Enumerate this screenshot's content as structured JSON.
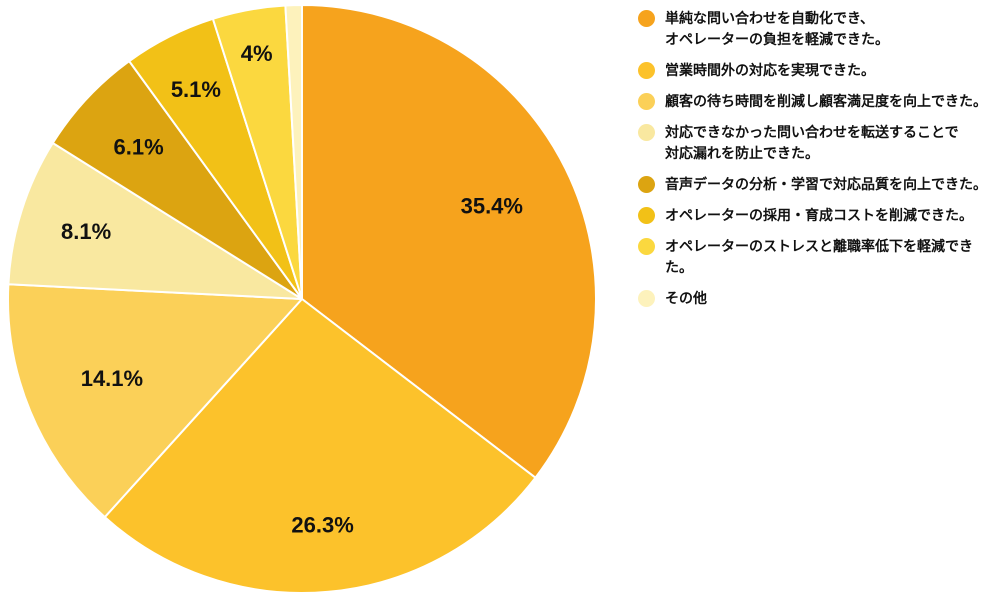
{
  "chart_data": {
    "type": "pie",
    "title": "",
    "start_angle_deg": 0,
    "clockwise": true,
    "legend_position": "right",
    "slices": [
      {
        "label": "単純な問い合わせを自動化でき、オペレーターの負担を軽減できた。",
        "value": 35.4,
        "display": "35.4%",
        "color": "#F6A31D",
        "label_r": 0.72
      },
      {
        "label": "営業時間外の対応を実現できた。",
        "value": 26.3,
        "display": "26.3%",
        "color": "#FCC22B",
        "label_r": 0.77
      },
      {
        "label": "顧客の待ち時間を削減し顧客満足度を向上できた。",
        "value": 14.1,
        "display": "14.1%",
        "color": "#FBD058",
        "label_r": 0.7
      },
      {
        "label": "対応できなかった問い合わせを転送することで対応漏れを防止できた。",
        "value": 8.1,
        "display": "8.1%",
        "color": "#F9E8A0",
        "label_r": 0.77
      },
      {
        "label": "音声データの分析・学習で対応品質を向上できた。",
        "value": 6.1,
        "display": "6.1%",
        "color": "#DCA411",
        "label_r": 0.76
      },
      {
        "label": "オペレーターの採用・育成コストを削減できた。",
        "value": 5.1,
        "display": "5.1%",
        "color": "#F2C117",
        "label_r": 0.8
      },
      {
        "label": "オペレーターのストレスと離職率低下を軽減できた。",
        "value": 4.0,
        "display": "4%",
        "color": "#FBD83F",
        "label_r": 0.85
      },
      {
        "label": "その他",
        "value": 0.9,
        "display": "",
        "color": "#FDF2BC",
        "label_r": 0
      }
    ]
  },
  "legend": {
    "items": [
      {
        "color": "#F6A31D",
        "lines": [
          "単純な問い合わせを自動化でき、",
          "オペレーターの負担を軽減できた。"
        ]
      },
      {
        "color": "#FCC22B",
        "lines": [
          "営業時間外の対応を実現できた。"
        ]
      },
      {
        "color": "#FBD058",
        "lines": [
          "顧客の待ち時間を削減し顧客満足度を向上できた。"
        ]
      },
      {
        "color": "#F9E8A0",
        "lines": [
          "対応できなかった問い合わせを転送することで",
          "対応漏れを防止できた。"
        ]
      },
      {
        "color": "#DCA411",
        "lines": [
          "音声データの分析・学習で対応品質を向上できた。"
        ]
      },
      {
        "color": "#F2C117",
        "lines": [
          "オペレーターの採用・育成コストを削減できた。"
        ]
      },
      {
        "color": "#FBD83F",
        "lines": [
          "オペレーターのストレスと離職率低下を軽減できた。"
        ]
      },
      {
        "color": "#FDF2BC",
        "lines": [
          "その他"
        ]
      }
    ]
  }
}
